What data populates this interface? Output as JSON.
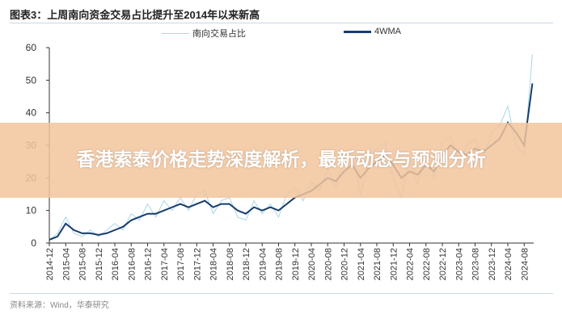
{
  "figure_title": "图表3：上周南向资金交易占比提升至2014年以来新高",
  "source": "资料来源：Wind，华泰研究",
  "banner": "香港索泰价格走势深度解析，最新动态与预测分析",
  "colors": {
    "raw": "#a9d6ea",
    "ma": "#163d6e",
    "banner": "#f2c49c"
  },
  "chart_data": {
    "type": "line",
    "title": "",
    "xlabel": "",
    "ylabel": "",
    "ylim": [
      0,
      60
    ],
    "yticks": [
      0,
      10,
      20,
      30,
      40,
      50,
      60
    ],
    "xticks": [
      "2014-12",
      "2015-04",
      "2015-08",
      "2015-12",
      "2016-04",
      "2016-08",
      "2016-12",
      "2017-04",
      "2017-08",
      "2017-12",
      "2018-04",
      "2018-08",
      "2018-12",
      "2019-04",
      "2019-08",
      "2019-12",
      "2020-04",
      "2020-08",
      "2020-12",
      "2021-04",
      "2021-08",
      "2021-12",
      "2022-04",
      "2022-08",
      "2022-12",
      "2023-04",
      "2023-08",
      "2023-12",
      "2024-04",
      "2024-08"
    ],
    "grid": false,
    "legend": "top",
    "x": [
      "2014-12",
      "2015-02",
      "2015-04",
      "2015-06",
      "2015-08",
      "2015-10",
      "2015-12",
      "2016-02",
      "2016-04",
      "2016-06",
      "2016-08",
      "2016-10",
      "2016-12",
      "2017-02",
      "2017-04",
      "2017-06",
      "2017-08",
      "2017-10",
      "2017-12",
      "2018-02",
      "2018-04",
      "2018-06",
      "2018-08",
      "2018-10",
      "2018-12",
      "2019-02",
      "2019-04",
      "2019-06",
      "2019-08",
      "2019-10",
      "2019-12",
      "2020-02",
      "2020-04",
      "2020-06",
      "2020-08",
      "2020-10",
      "2020-12",
      "2021-02",
      "2021-04",
      "2021-06",
      "2021-08",
      "2021-10",
      "2021-12",
      "2022-02",
      "2022-04",
      "2022-06",
      "2022-08",
      "2022-10",
      "2022-12",
      "2023-02",
      "2023-04",
      "2023-06",
      "2023-08",
      "2023-10",
      "2023-12",
      "2024-02",
      "2024-04",
      "2024-06",
      "2024-08",
      "2024-10"
    ],
    "series": [
      {
        "name": "南向交易占比",
        "values": [
          1,
          3,
          8,
          3,
          2,
          4,
          2,
          4,
          6,
          4,
          9,
          7,
          12,
          8,
          13,
          10,
          14,
          10,
          15,
          16,
          9,
          13,
          14,
          8,
          7,
          13,
          9,
          12,
          8,
          15,
          17,
          13,
          19,
          16,
          23,
          17,
          26,
          28,
          15,
          25,
          29,
          31,
          20,
          14,
          26,
          18,
          28,
          20,
          31,
          33,
          25,
          30,
          32,
          26,
          34,
          36,
          42,
          30,
          27,
          58
        ]
      },
      {
        "name": "4WMA",
        "values": [
          1,
          2,
          6,
          4,
          3,
          3,
          2.5,
          3,
          4,
          5,
          7,
          8,
          9,
          9,
          10,
          11,
          12,
          11,
          12,
          13,
          11,
          12,
          12,
          10,
          9,
          11,
          10,
          11,
          10,
          12,
          14,
          15,
          16,
          18,
          20,
          19,
          22,
          24,
          20,
          23,
          25,
          27,
          24,
          20,
          22,
          21,
          24,
          22,
          27,
          30,
          28,
          27,
          29,
          28,
          30,
          32,
          37,
          34,
          30,
          49
        ]
      }
    ]
  }
}
